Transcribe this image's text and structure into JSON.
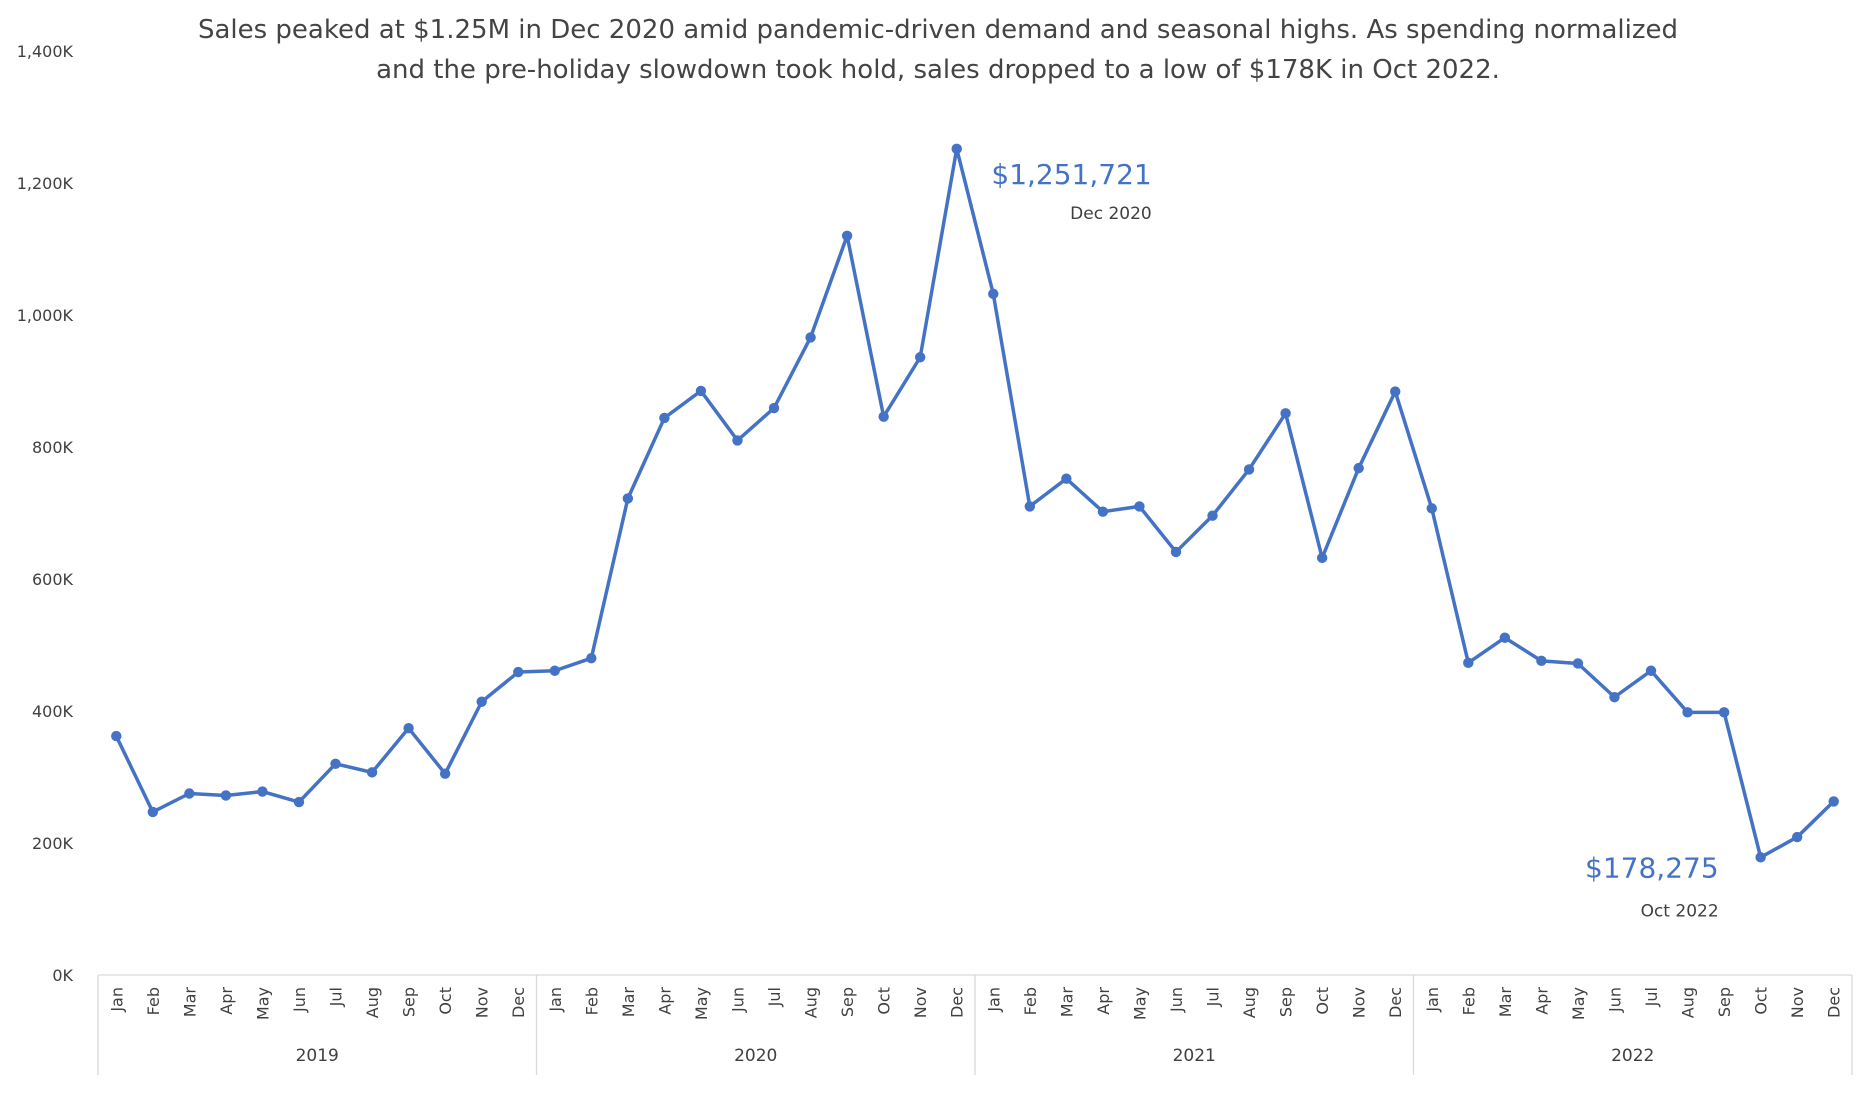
{
  "chart_data": {
    "type": "line",
    "title": [
      "Sales peaked at $1.25M in Dec 2020 amid pandemic-driven demand and seasonal highs. As spending normalized",
      "and the pre-holiday slowdown took hold, sales dropped to a low of $178K in Oct 2022."
    ],
    "xlabel": "",
    "ylabel": "",
    "ylim": [
      0,
      1400000
    ],
    "yticks": [
      "0K",
      "200K",
      "400K",
      "600K",
      "800K",
      "1,000K",
      "1,200K",
      "1,400K"
    ],
    "grid": false,
    "legend": "none",
    "colors": {
      "series": "#4472C4",
      "axis": "#d9d9d9",
      "text": "#404040",
      "title": "#444444"
    },
    "years": [
      "2019",
      "2020",
      "2021",
      "2022"
    ],
    "months": [
      "Jan",
      "Feb",
      "Mar",
      "Apr",
      "May",
      "Jun",
      "Jul",
      "Aug",
      "Sep",
      "Oct",
      "Nov",
      "Dec"
    ],
    "series": [
      {
        "values": [
          362000,
          247000,
          275000,
          272000,
          278000,
          262000,
          320000,
          307000,
          374000,
          305000,
          414000,
          459000,
          461000,
          480000,
          722000,
          844000,
          885000,
          810000,
          859000,
          966000,
          1120000,
          846000,
          936000,
          1251721,
          1032000,
          710000,
          752000,
          702000,
          710000,
          641000,
          696000,
          766000,
          851000,
          632000,
          768000,
          884000,
          707000,
          473000,
          511000,
          476000,
          472000,
          421000,
          461000,
          398000,
          398000,
          178275,
          209000,
          263000
        ]
      }
    ],
    "annotations": [
      {
        "value_text": "$1,251,721",
        "date_text": "Dec 2020",
        "index": 23,
        "position": "right"
      },
      {
        "value_text": "$178,275",
        "date_text": "Oct 2022",
        "index": 45,
        "position": "left-below"
      }
    ]
  }
}
